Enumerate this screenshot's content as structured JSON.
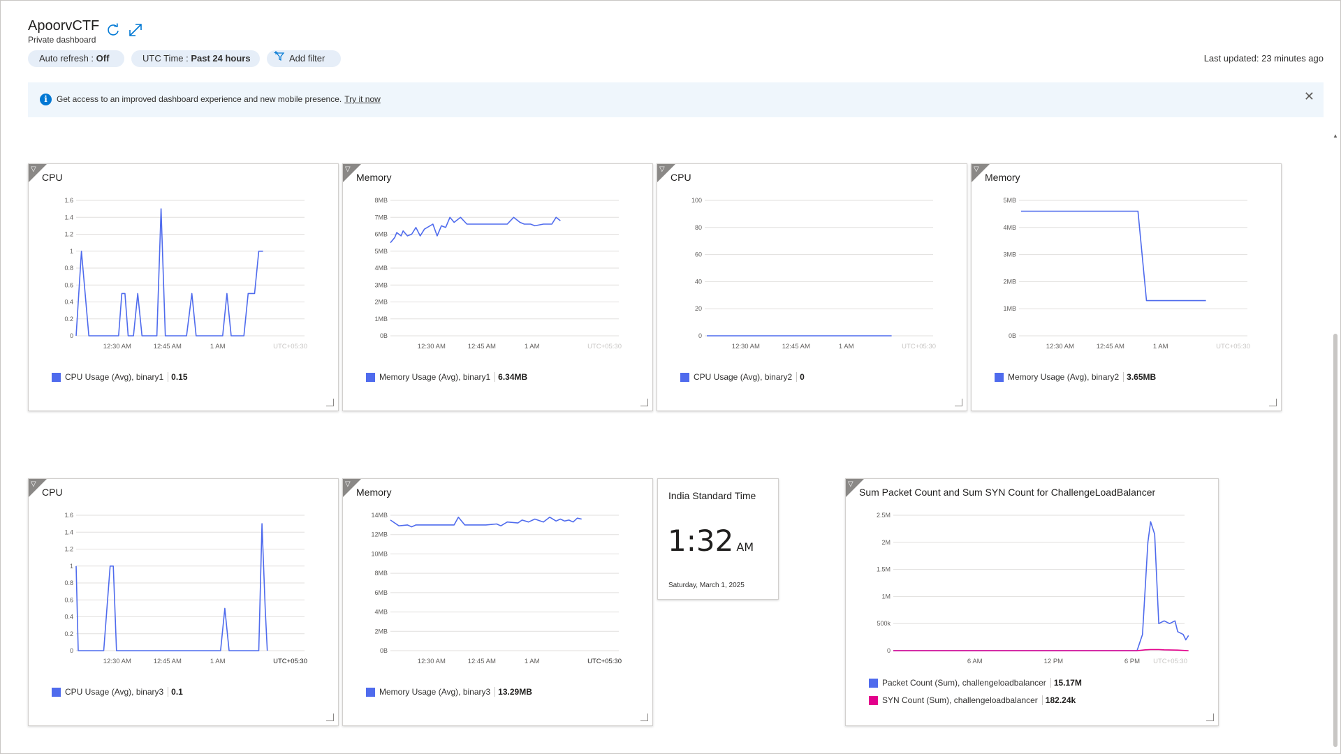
{
  "header": {
    "title": "ApoorvCTF",
    "subtitle": "Private dashboard",
    "refresh_icon": "refresh-icon",
    "fullscreen_icon": "expand-icon"
  },
  "toolbar": {
    "auto_refresh_label": "Auto refresh : ",
    "auto_refresh_value": "Off",
    "utc_label": "UTC Time : ",
    "utc_value": "Past 24 hours",
    "add_filter_label": "Add filter",
    "last_updated": "Last updated: 23 minutes ago"
  },
  "banner": {
    "text": "Get access to an improved dashboard experience and new mobile presence.",
    "link": "Try it now",
    "close": "✕"
  },
  "colors": {
    "series_blue": "#4f6bed",
    "series_magenta": "#e3008c",
    "accent": "#0078d4"
  },
  "tiles": [
    {
      "title": "CPU",
      "legend_label": "CPU Usage (Avg), binary1",
      "legend_value": "0.15"
    },
    {
      "title": "Memory",
      "legend_label": "Memory Usage (Avg), binary1",
      "legend_value": "6.34MB"
    },
    {
      "title": "CPU",
      "legend_label": "CPU Usage (Avg), binary2",
      "legend_value": "0"
    },
    {
      "title": "Memory",
      "legend_label": "Memory Usage (Avg), binary2",
      "legend_value": "3.65MB"
    },
    {
      "title": "CPU",
      "legend_label": "CPU Usage (Avg), binary3",
      "legend_value": "0.1"
    },
    {
      "title": "Memory",
      "legend_label": "Memory Usage (Avg), binary3",
      "legend_value": "13.29MB"
    },
    {
      "title": "Sum Packet Count and Sum SYN Count for ChallengeLoadBalancer",
      "legend_label": "Packet Count (Sum), challengeloadbalancer",
      "legend_value": "15.17M",
      "legend2_label": "SYN Count (Sum), challengeloadbalancer",
      "legend2_value": "182.24k"
    }
  ],
  "clock": {
    "timezone": "India Standard Time",
    "time": "1:32",
    "ampm": "AM",
    "date": "Saturday, March 1, 2025"
  },
  "chart_data": [
    {
      "type": "line",
      "title": "CPU",
      "yticks": [
        "0",
        "0.2",
        "0.4",
        "0.6",
        "0.8",
        "1",
        "1.2",
        "1.4",
        "1.6"
      ],
      "ylim": [
        0,
        1.6
      ],
      "xticks": [
        "12:30 AM",
        "12:45 AM",
        "1 AM"
      ],
      "xtick_pos": [
        0.18,
        0.4,
        0.62
      ],
      "tz": "UTC+05:30",
      "tz_bold": false,
      "series": [
        {
          "color": "#4f6bed",
          "points": [
            [
              0,
              0
            ],
            [
              0.025,
              1
            ],
            [
              0.06,
              0
            ],
            [
              0.12,
              0
            ],
            [
              0.135,
              0
            ],
            [
              0.145,
              0
            ],
            [
              0.2,
              0
            ],
            [
              0.215,
              0.5
            ],
            [
              0.23,
              0.5
            ],
            [
              0.245,
              0
            ],
            [
              0.27,
              0
            ],
            [
              0.29,
              0.5
            ],
            [
              0.31,
              0
            ],
            [
              0.38,
              0
            ],
            [
              0.4,
              1.5
            ],
            [
              0.42,
              0
            ],
            [
              0.52,
              0
            ],
            [
              0.545,
              0.5
            ],
            [
              0.565,
              0
            ],
            [
              0.69,
              0
            ],
            [
              0.71,
              0.5
            ],
            [
              0.73,
              0
            ],
            [
              0.79,
              0
            ],
            [
              0.81,
              0.5
            ],
            [
              0.84,
              0.5
            ],
            [
              0.86,
              1
            ],
            [
              0.88,
              1
            ]
          ]
        }
      ]
    },
    {
      "type": "line",
      "title": "Memory",
      "yticks": [
        "0B",
        "1MB",
        "2MB",
        "3MB",
        "4MB",
        "5MB",
        "6MB",
        "7MB",
        "8MB"
      ],
      "ylim": [
        0,
        8
      ],
      "xticks": [
        "12:30 AM",
        "12:45 AM",
        "1 AM"
      ],
      "xtick_pos": [
        0.18,
        0.4,
        0.62
      ],
      "tz": "UTC+05:30",
      "tz_bold": false,
      "series": [
        {
          "color": "#4f6bed",
          "points": [
            [
              0,
              5.5
            ],
            [
              0.02,
              5.8
            ],
            [
              0.03,
              6.1
            ],
            [
              0.05,
              5.9
            ],
            [
              0.06,
              6.2
            ],
            [
              0.08,
              5.9
            ],
            [
              0.1,
              6
            ],
            [
              0.12,
              6.4
            ],
            [
              0.14,
              5.9
            ],
            [
              0.16,
              6.3
            ],
            [
              0.2,
              6.6
            ],
            [
              0.22,
              5.9
            ],
            [
              0.24,
              6.5
            ],
            [
              0.26,
              6.4
            ],
            [
              0.28,
              7
            ],
            [
              0.3,
              6.7
            ],
            [
              0.33,
              7
            ],
            [
              0.36,
              6.6
            ],
            [
              0.45,
              6.6
            ],
            [
              0.55,
              6.6
            ],
            [
              0.58,
              7
            ],
            [
              0.61,
              6.7
            ],
            [
              0.63,
              6.6
            ],
            [
              0.66,
              6.6
            ],
            [
              0.68,
              6.5
            ],
            [
              0.72,
              6.6
            ],
            [
              0.76,
              6.6
            ],
            [
              0.78,
              7
            ],
            [
              0.8,
              6.8
            ]
          ]
        }
      ]
    },
    {
      "type": "line",
      "title": "CPU",
      "yticks": [
        "0",
        "20",
        "40",
        "60",
        "80",
        "100"
      ],
      "ylim": [
        0,
        100
      ],
      "xticks": [
        "12:30 AM",
        "12:45 AM",
        "1 AM"
      ],
      "xtick_pos": [
        0.18,
        0.4,
        0.62
      ],
      "tz": "UTC+05:30",
      "tz_bold": false,
      "series": [
        {
          "color": "#4f6bed",
          "points": [
            [
              0.01,
              0
            ],
            [
              0.88,
              0
            ]
          ]
        }
      ]
    },
    {
      "type": "line",
      "title": "Memory",
      "yticks": [
        "0B",
        "1MB",
        "2MB",
        "3MB",
        "4MB",
        "5MB"
      ],
      "ylim": [
        0,
        5
      ],
      "xticks": [
        "12:30 AM",
        "12:45 AM",
        "1 AM"
      ],
      "xtick_pos": [
        0.18,
        0.4,
        0.62
      ],
      "tz": "UTC+05:30",
      "tz_bold": false,
      "series": [
        {
          "color": "#4f6bed",
          "points": [
            [
              0.01,
              4.6
            ],
            [
              0.56,
              4.6
            ],
            [
              0.6,
              1.3
            ],
            [
              0.88,
              1.3
            ]
          ]
        }
      ]
    },
    {
      "type": "line",
      "title": "CPU",
      "yticks": [
        "0",
        "0.2",
        "0.4",
        "0.6",
        "0.8",
        "1",
        "1.2",
        "1.4",
        "1.6"
      ],
      "ylim": [
        0,
        1.6
      ],
      "xticks": [
        "12:30 AM",
        "12:45 AM",
        "1 AM"
      ],
      "xtick_pos": [
        0.18,
        0.4,
        0.62
      ],
      "tz": "UTC+05:30",
      "tz_bold": true,
      "series": [
        {
          "color": "#4f6bed",
          "points": [
            [
              0,
              1
            ],
            [
              0.01,
              0
            ],
            [
              0.13,
              0
            ],
            [
              0.16,
              1
            ],
            [
              0.175,
              1
            ],
            [
              0.19,
              0
            ],
            [
              0.68,
              0
            ],
            [
              0.7,
              0.5
            ],
            [
              0.72,
              0
            ],
            [
              0.86,
              0
            ],
            [
              0.875,
              1.5
            ],
            [
              0.89,
              0.5
            ],
            [
              0.9,
              0
            ]
          ]
        }
      ]
    },
    {
      "type": "line",
      "title": "Memory",
      "yticks": [
        "0B",
        "2MB",
        "4MB",
        "6MB",
        "8MB",
        "10MB",
        "12MB",
        "14MB"
      ],
      "ylim": [
        0,
        14
      ],
      "xticks": [
        "12:30 AM",
        "12:45 AM",
        "1 AM"
      ],
      "xtick_pos": [
        0.18,
        0.4,
        0.62
      ],
      "tz": "UTC+05:30",
      "tz_bold": true,
      "series": [
        {
          "color": "#4f6bed",
          "points": [
            [
              0,
              13.5
            ],
            [
              0.04,
              12.9
            ],
            [
              0.08,
              13
            ],
            [
              0.1,
              12.8
            ],
            [
              0.12,
              13
            ],
            [
              0.2,
              13
            ],
            [
              0.3,
              13
            ],
            [
              0.32,
              13.8
            ],
            [
              0.35,
              13
            ],
            [
              0.45,
              13
            ],
            [
              0.5,
              13.1
            ],
            [
              0.52,
              12.9
            ],
            [
              0.55,
              13.3
            ],
            [
              0.6,
              13.2
            ],
            [
              0.62,
              13.5
            ],
            [
              0.65,
              13.3
            ],
            [
              0.68,
              13.6
            ],
            [
              0.72,
              13.3
            ],
            [
              0.75,
              13.8
            ],
            [
              0.78,
              13.4
            ],
            [
              0.8,
              13.6
            ],
            [
              0.82,
              13.4
            ],
            [
              0.84,
              13.5
            ],
            [
              0.86,
              13.3
            ],
            [
              0.88,
              13.7
            ],
            [
              0.9,
              13.6
            ]
          ]
        }
      ]
    },
    {
      "type": "line",
      "title": "Sum Packet Count and Sum SYN Count for ChallengeLoadBalancer",
      "yticks": [
        "0",
        "500k",
        "1M",
        "1.5M",
        "2M",
        "2.5M"
      ],
      "ylim": [
        0,
        2500000
      ],
      "xticks": [
        "6 AM",
        "12 PM",
        "6 PM"
      ],
      "xtick_pos": [
        0.28,
        0.55,
        0.82
      ],
      "tz": "UTC+05:30",
      "tz_bold": false,
      "series": [
        {
          "name": "Packet Count (Sum), challengeloadbalancer",
          "color": "#4f6bed",
          "points": [
            [
              0,
              0
            ],
            [
              0.9,
              0
            ],
            [
              0.92,
              300000
            ],
            [
              0.94,
              2000000
            ],
            [
              0.95,
              2380000
            ],
            [
              0.965,
              2150000
            ],
            [
              0.98,
              500000
            ],
            [
              1.0,
              550000
            ],
            [
              1.02,
              500000
            ],
            [
              1.04,
              550000
            ],
            [
              1.05,
              350000
            ],
            [
              1.07,
              300000
            ],
            [
              1.08,
              200000
            ],
            [
              1.09,
              280000
            ]
          ]
        },
        {
          "name": "SYN Count (Sum), challengeloadbalancer",
          "color": "#e3008c",
          "points": [
            [
              0,
              0
            ],
            [
              0.9,
              0
            ],
            [
              0.93,
              15000
            ],
            [
              0.95,
              20000
            ],
            [
              0.98,
              20000
            ],
            [
              1.0,
              15000
            ],
            [
              1.05,
              10000
            ],
            [
              1.09,
              0
            ]
          ]
        }
      ]
    }
  ]
}
